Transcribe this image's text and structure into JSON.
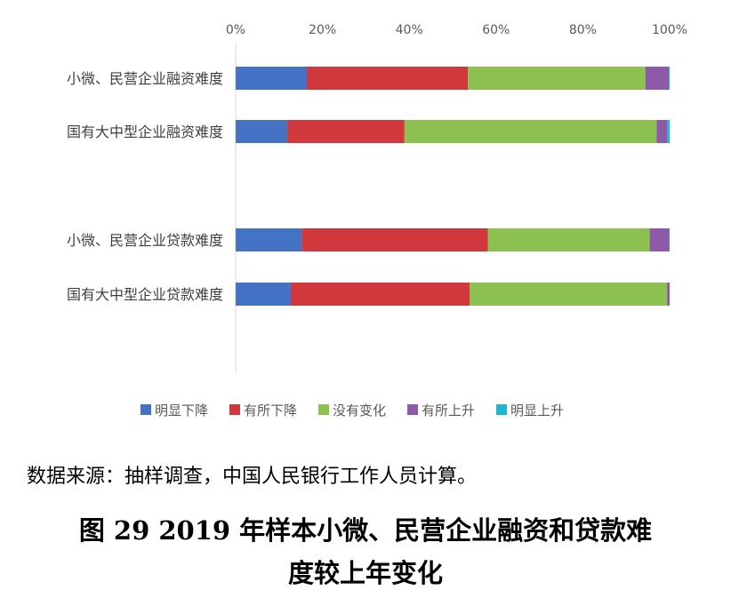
{
  "chart_data": {
    "type": "bar",
    "orientation": "horizontal",
    "stacked": true,
    "categories": [
      "小微、民营企业融资难度",
      "国有大中型企业融资难度",
      "小微、民营企业贷款难度",
      "国有大中型企业贷款难度"
    ],
    "series": [
      {
        "name": "明显下降",
        "color": "#4472C4",
        "values": [
          16.4,
          11.9,
          15.2,
          12.7
        ]
      },
      {
        "name": "有所下降",
        "color": "#D0383D",
        "values": [
          37.1,
          27.0,
          42.9,
          41.2
        ]
      },
      {
        "name": "没有变化",
        "color": "#8CC152",
        "values": [
          40.9,
          58.1,
          37.3,
          45.5
        ]
      },
      {
        "name": "有所上升",
        "color": "#8E5AA8",
        "values": [
          5.4,
          2.4,
          4.5,
          0.6
        ]
      },
      {
        "name": "明显上升",
        "color": "#1FB6CF",
        "values": [
          0.2,
          0.6,
          0.1,
          0.0
        ]
      }
    ],
    "xticks": [
      "0%",
      "20%",
      "40%",
      "60%",
      "80%",
      "100%"
    ],
    "xlim": [
      0,
      100
    ],
    "axis_position": "top",
    "grid": false,
    "legend": "bottom"
  },
  "source": "数据来源：抽样调查，中国人民银行工作人员计算。",
  "caption_line1": "图 29 2019 年样本小微、民营企业融资和贷款难",
  "caption_line2": "度较上年变化"
}
